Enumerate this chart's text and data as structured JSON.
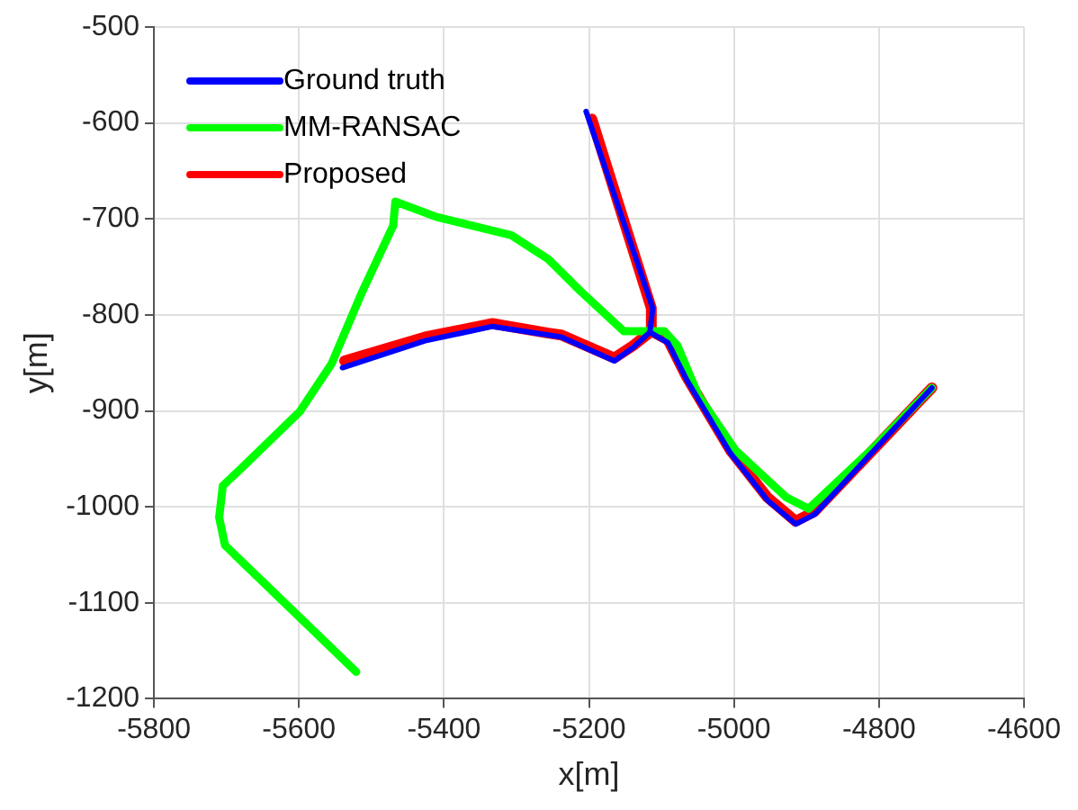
{
  "chart_data": {
    "type": "line",
    "xlabel": "x[m]",
    "ylabel": "y[m]",
    "xlim": [
      -5800,
      -4600
    ],
    "ylim": [
      -1200,
      -500
    ],
    "xticks": [
      -5800,
      -5600,
      -5400,
      -5200,
      -5000,
      -4800,
      -4600
    ],
    "yticks": [
      -1200,
      -1100,
      -1000,
      -900,
      -800,
      -700,
      -600,
      -500
    ],
    "grid": true,
    "legend": "top left",
    "marker": "none",
    "line_style": "solid",
    "series": [
      {
        "name": "Ground truth",
        "color": "#0000ff",
        "x": [
          -5540,
          -5426,
          -5333,
          -5256,
          -5238,
          -5165,
          -5139,
          -5116,
          -5112,
          -5204,
          -5112,
          -5116,
          -5091,
          -5065,
          -5005,
          -4954,
          -4915,
          -4889,
          -4727
        ],
        "values": [
          -855,
          -827,
          -812,
          -821,
          -823,
          -848,
          -834,
          -818,
          -793,
          -588,
          -793,
          -818,
          -829,
          -868,
          -944,
          -993,
          -1018,
          -1008,
          -876
        ]
      },
      {
        "name": "MM-RANSAC",
        "color": "#00ff00",
        "x": [
          -5521,
          -5702,
          -5710,
          -5705,
          -5681,
          -5599,
          -5555,
          -5514,
          -5470,
          -5467,
          -5410,
          -5307,
          -5256,
          -5212,
          -5152,
          -5121,
          -5096,
          -5078,
          -5049,
          -4998,
          -4928,
          -4897,
          -4807,
          -4727
        ],
        "values": [
          -1172,
          -1040,
          -1011,
          -978,
          -961,
          -901,
          -851,
          -778,
          -707,
          -682,
          -698,
          -717,
          -742,
          -775,
          -817,
          -817,
          -817,
          -832,
          -884,
          -941,
          -990,
          -1002,
          -938,
          -876
        ]
      },
      {
        "name": "Proposed",
        "color": "#ff0000",
        "x": [
          -5537,
          -5426,
          -5333,
          -5256,
          -5238,
          -5165,
          -5139,
          -5114,
          -5114,
          -5196,
          -5114,
          -5114,
          -5091,
          -5065,
          -5005,
          -4954,
          -4915,
          -4889,
          -4727
        ],
        "values": [
          -848,
          -823,
          -809,
          -819,
          -821,
          -845,
          -832,
          -817,
          -793,
          -596,
          -793,
          -817,
          -826,
          -865,
          -941,
          -990,
          -1015,
          -1005,
          -876
        ]
      }
    ]
  }
}
